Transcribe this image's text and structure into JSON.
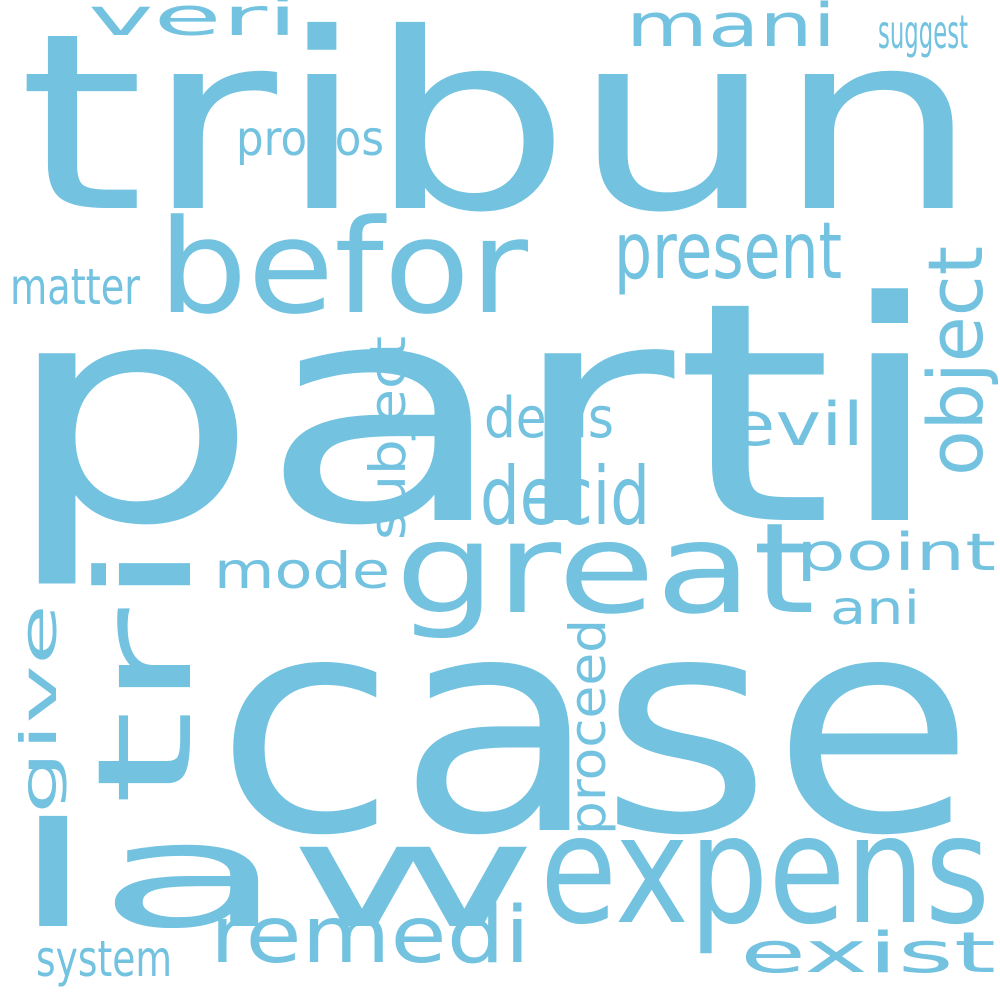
{
  "word_color": "#72c2e0",
  "background_color": "#ffffff",
  "words": [
    "tribun",
    "parti",
    "case",
    "befor",
    "law",
    "expens",
    "great",
    "remedi",
    "present",
    "decid",
    "decis",
    "evil",
    "mani",
    "veri",
    "propos",
    "matter",
    "suggest",
    "point",
    "mode",
    "ani",
    "system",
    "exist",
    "tri",
    "object",
    "subject",
    "give",
    "proceed"
  ]
}
